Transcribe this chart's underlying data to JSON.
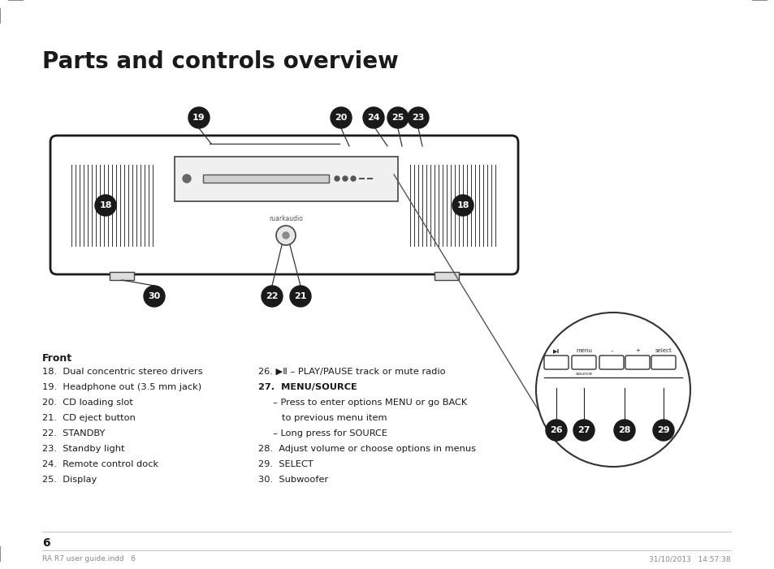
{
  "title": "Parts and controls overview",
  "background_color": "#ffffff",
  "page_number": "6",
  "footer_left": "RA R7 user guide.indd   6",
  "footer_right": "31/10/2013   14:57:38",
  "front_label": "Front",
  "items_left": [
    "18.  Dual concentric stereo drivers",
    "19.  Headphone out (3.5 mm jack)",
    "20.  CD loading slot",
    "21.  CD eject button",
    "22.  STANDBY",
    "23.  Standby light",
    "24.  Remote control dock",
    "25.  Display"
  ],
  "items_right": [
    "26. ▶Ⅱ – PLAY/PAUSE track or mute radio",
    "27.  MENU/SOURCE",
    "    – Press to enter options MENU or go BACK",
    "       to previous menu item",
    "    – Long press for SOURCE",
    "28.  Adjust volume or choose options in menus",
    "29.  SELECT",
    "30.  Subwoofer"
  ],
  "label_color": "#1a1a1a",
  "circle_bg": "#1a1a1a",
  "circle_fg": "#ffffff"
}
